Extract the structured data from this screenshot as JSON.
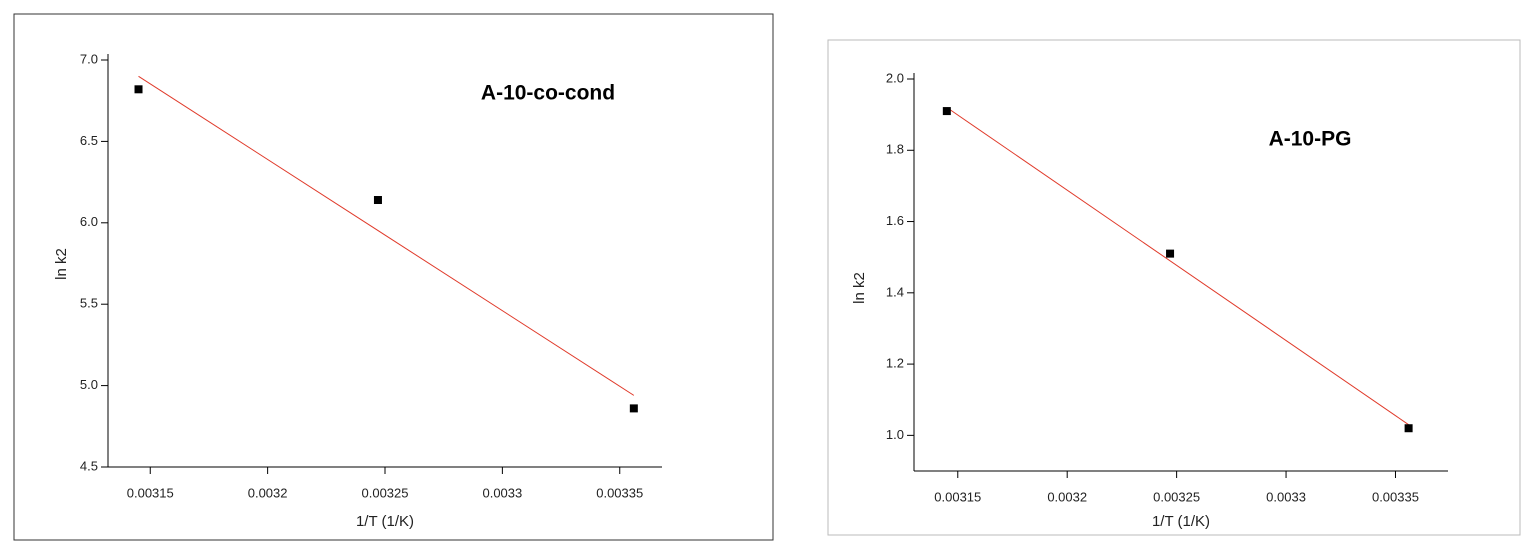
{
  "chart_data": [
    {
      "type": "scatter",
      "title": "A-10-co-cond",
      "x_label": "1/T (1/K)",
      "y_label": "ln k2",
      "x": [
        0.003145,
        0.003247,
        0.003356
      ],
      "values": [
        6.82,
        6.14,
        4.86
      ],
      "color": "#000000",
      "fit": {
        "x": [
          0.003145,
          0.003356
        ],
        "values": [
          6.9,
          4.94
        ],
        "color": "#e03a2a"
      },
      "xlim": [
        0.003132,
        0.003368
      ],
      "xticks": [
        0.00315,
        0.0032,
        0.00325,
        0.0033,
        0.00335
      ],
      "ylim": [
        4.5,
        7.0
      ],
      "yticks": [
        {
          "value": 4.5,
          "label": "4.5"
        },
        {
          "value": 5,
          "label": "5.0"
        },
        {
          "value": 5.5,
          "label": "5.5"
        },
        {
          "value": 6,
          "label": "6.0"
        },
        {
          "value": 6.5,
          "label": "6.5"
        },
        {
          "value": 7,
          "label": "7.0"
        }
      ]
    },
    {
      "type": "scatter",
      "title": "A-10-PG",
      "x_label": "1/T (1/K)",
      "y_label": "ln k2",
      "x": [
        0.003145,
        0.003247,
        0.003356
      ],
      "values": [
        1.91,
        1.51,
        1.02
      ],
      "color": "#000000",
      "fit": {
        "x": [
          0.003145,
          0.003356
        ],
        "values": [
          1.92,
          1.03
        ],
        "color": "#e03a2a"
      },
      "xlim": [
        0.00313,
        0.003374
      ],
      "xticks": [
        0.00315,
        0.0032,
        0.00325,
        0.0033,
        0.00335
      ],
      "ylim": [
        0.9,
        2.0
      ],
      "yticks": [
        {
          "value": 1,
          "label": "1.0"
        },
        {
          "value": 1.2,
          "label": "1.2"
        },
        {
          "value": 1.4,
          "label": "1.4"
        },
        {
          "value": 1.6,
          "label": "1.6"
        },
        {
          "value": 1.8,
          "label": "1.8"
        },
        {
          "value": 2,
          "label": "2.0"
        }
      ]
    }
  ]
}
